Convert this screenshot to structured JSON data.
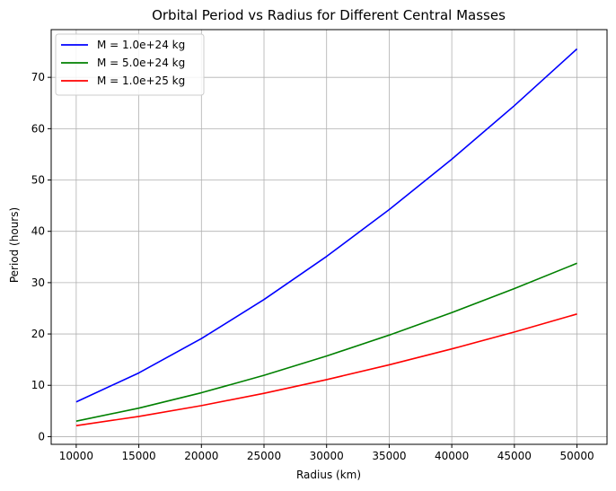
{
  "chart_data": {
    "type": "line",
    "title": "Orbital Period vs Radius for Different Central Masses",
    "xlabel": "Radius (km)",
    "ylabel": "Period (hours)",
    "xlim": [
      8000,
      52400
    ],
    "ylim": [
      -1.5,
      79.3
    ],
    "xticks": [
      10000,
      15000,
      20000,
      25000,
      30000,
      35000,
      40000,
      45000,
      50000
    ],
    "yticks": [
      0,
      10,
      20,
      30,
      40,
      50,
      60,
      70
    ],
    "grid": true,
    "legend_position": "top-left",
    "x": [
      10000,
      15000,
      20000,
      25000,
      30000,
      35000,
      40000,
      45000,
      50000
    ],
    "series": [
      {
        "name": "M = 1.0e+24 kg",
        "color": "#0000ff",
        "values": [
          6.76,
          12.41,
          19.11,
          26.71,
          35.11,
          44.24,
          54.05,
          64.49,
          75.54
        ]
      },
      {
        "name": "M = 5.0e+24 kg",
        "color": "#008000",
        "values": [
          3.02,
          5.55,
          8.55,
          11.94,
          15.7,
          19.78,
          24.17,
          28.84,
          33.78
        ]
      },
      {
        "name": "M = 1.0e+25 kg",
        "color": "#ff0000",
        "values": [
          2.14,
          3.93,
          6.04,
          8.44,
          11.1,
          13.99,
          17.09,
          20.39,
          23.89
        ]
      }
    ]
  }
}
